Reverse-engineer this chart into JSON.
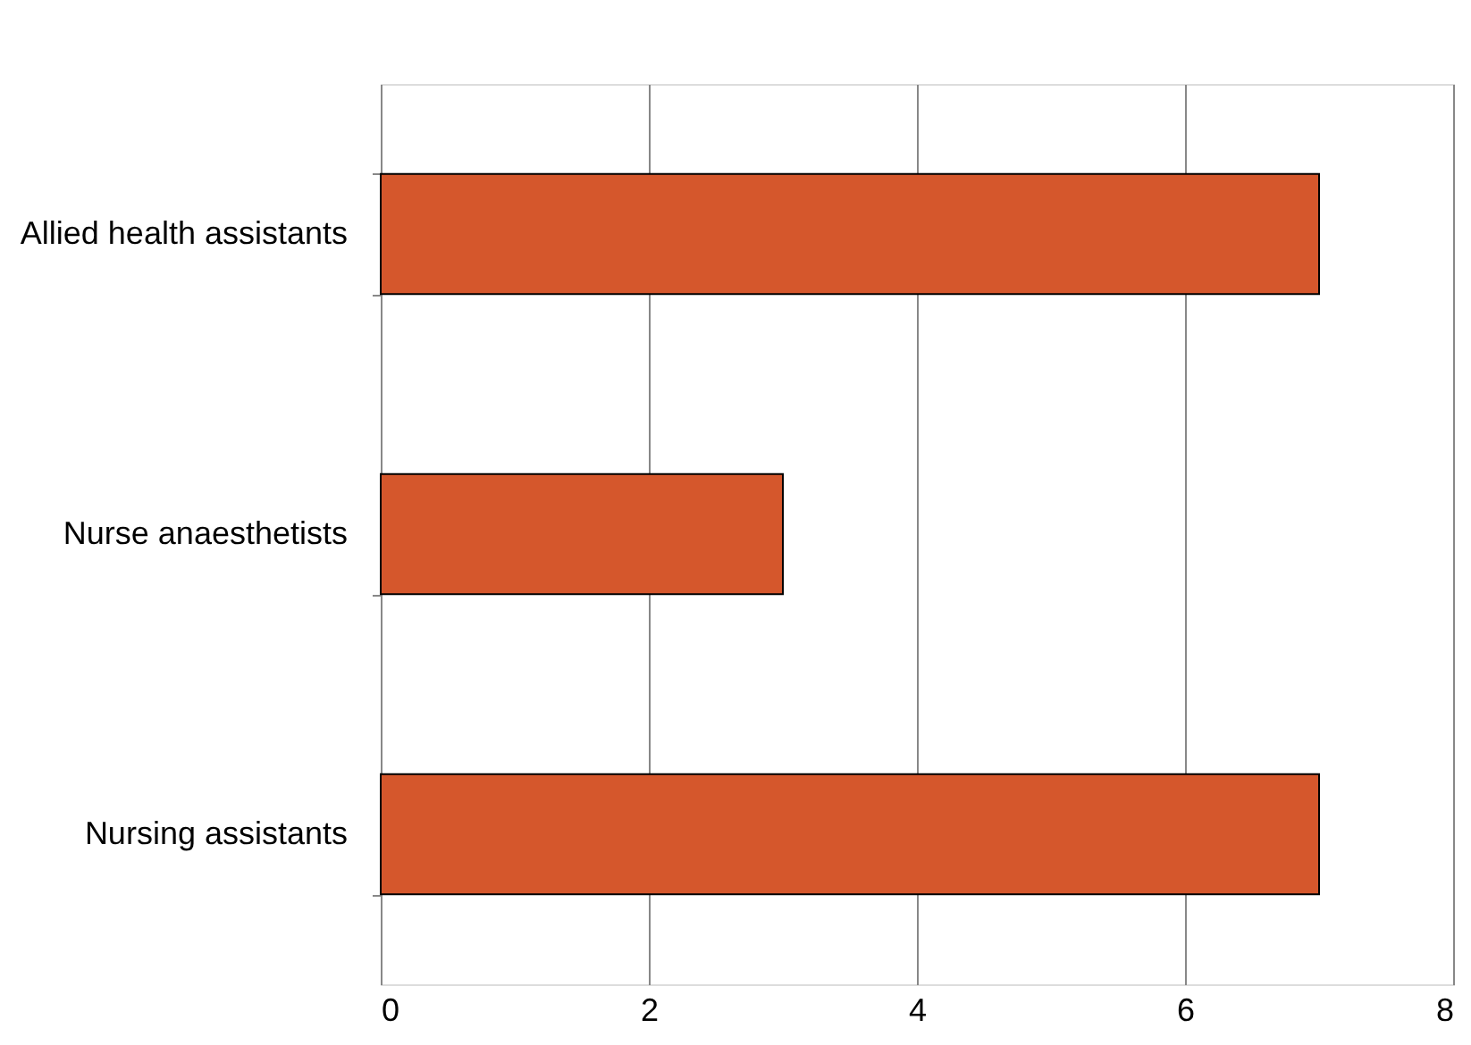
{
  "chart_data": {
    "type": "bar",
    "orientation": "horizontal",
    "categories": [
      "Allied health assistants",
      "Nurse anaesthetists",
      "Nursing assistants"
    ],
    "values": [
      7,
      3,
      7
    ],
    "color": "#d5572c",
    "xlim": [
      0,
      8
    ],
    "xticks": [
      0,
      2,
      4,
      6,
      8
    ],
    "grid": "x"
  }
}
